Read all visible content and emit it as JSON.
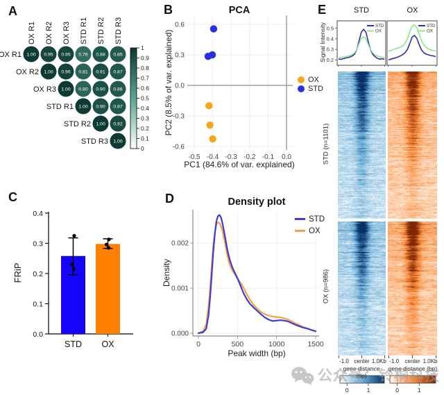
{
  "watermark": {
    "text": "公众号：铃桐科技",
    "icon": "wechat-icon"
  },
  "chart_data": [
    {
      "id": "A",
      "panel_label": "A",
      "type": "heatmap",
      "subtype": "correlation_matrix_circles",
      "labels": [
        "OX R1",
        "OX R2",
        "OX R3",
        "STD R1",
        "STD R2",
        "STD R3"
      ],
      "matrix_upper_triangle": [
        [
          1.0,
          0.95,
          0.95,
          0.76,
          0.88,
          0.85
        ],
        [
          1.0,
          0.96,
          0.81,
          0.91,
          0.87
        ],
        [
          1.0,
          0.8,
          0.9,
          0.86
        ],
        [
          1.0,
          0.9,
          0.87
        ],
        [
          1.0,
          0.92
        ],
        [
          1.0
        ]
      ],
      "colorbar": {
        "min": 0,
        "max": 1,
        "ticks": [
          "1",
          "0.9",
          "0.8",
          "0.7",
          "0.6",
          "0.5",
          "0.4",
          "0.3",
          "0.2",
          "0.1",
          "0"
        ],
        "color_max": "#0d3a33",
        "color_mid": "#58a593",
        "color_min": "#ffffff"
      }
    },
    {
      "id": "B",
      "panel_label": "B",
      "type": "scatter",
      "title": "PCA",
      "xlabel": "PC1 (84.6% of var. explained)",
      "ylabel": "PC2 (8.5% of var. explained)",
      "x_ticks": [
        "-0.5",
        "-0.4",
        "-0.3",
        "-0.2",
        "-0.1",
        "0.0"
      ],
      "y_ticks": [
        "0.6",
        "0.3",
        "0.0",
        "-0.3",
        "-0.6"
      ],
      "xlim": [
        -0.55,
        0.05
      ],
      "ylim": [
        -0.65,
        0.65
      ],
      "grid": true,
      "series": [
        {
          "name": "OX",
          "color": "#f6a51d",
          "points": [
            [
              -0.42,
              -0.2
            ],
            [
              -0.415,
              -0.39
            ],
            [
              -0.4,
              -0.525
            ]
          ]
        },
        {
          "name": "STD",
          "color": "#2b2fe3",
          "points": [
            [
              -0.395,
              0.555
            ],
            [
              -0.425,
              0.285
            ],
            [
              -0.402,
              0.3
            ]
          ]
        }
      ],
      "legend": {
        "position": "right",
        "entries": [
          "OX",
          "STD"
        ]
      }
    },
    {
      "id": "C",
      "panel_label": "C",
      "type": "bar",
      "ylabel": "FRiP",
      "categories": [
        "STD",
        "OX"
      ],
      "values": [
        0.258,
        0.298
      ],
      "bar_colors": [
        "#1404fa",
        "#ff8000"
      ],
      "error_bars": [
        {
          "low": 0.196,
          "high": 0.318
        },
        {
          "low": 0.283,
          "high": 0.315
        }
      ],
      "points": [
        [
          0.325,
          0.23,
          0.215
        ],
        [
          0.313,
          0.296,
          0.285
        ]
      ],
      "y_ticks": [
        "0.4",
        "0.3",
        "0.2",
        "0.1",
        "0.0"
      ],
      "ylim": [
        0,
        0.4
      ]
    },
    {
      "id": "D",
      "panel_label": "D",
      "type": "line",
      "title": "Density plot",
      "xlabel": "Peak width (bp)",
      "ylabel": "Density",
      "x_ticks": [
        "0",
        "500",
        "1000",
        "1500"
      ],
      "y_ticks": [
        "0.002",
        "0.001",
        "0.000"
      ],
      "xlim": [
        0,
        1500
      ],
      "ylim": [
        0,
        0.00272
      ],
      "series": [
        {
          "name": "STD",
          "color": "#3c3cdc",
          "x": [
            0,
            60,
            100,
            130,
            150,
            170,
            190,
            210,
            230,
            250,
            270,
            290,
            310,
            340,
            370,
            400,
            430,
            460,
            500,
            540,
            580,
            620,
            660,
            700,
            750,
            800,
            850,
            900,
            950,
            1000,
            1050,
            1100,
            1150,
            1200,
            1250,
            1300,
            1350,
            1400,
            1450,
            1500
          ],
          "y": [
            0,
            2e-05,
            0.0001,
            0.0004,
            0.0008,
            0.0013,
            0.0018,
            0.0022,
            0.00248,
            0.0026,
            0.00262,
            0.00256,
            0.00242,
            0.00215,
            0.00185,
            0.00163,
            0.00148,
            0.00136,
            0.00122,
            0.00105,
            0.00088,
            0.00075,
            0.00065,
            0.00058,
            0.0005,
            0.00042,
            0.00035,
            0.0003,
            0.00027,
            0.00028,
            0.00029,
            0.00028,
            0.00026,
            0.00022,
            0.00018,
            0.00015,
            0.00012,
            0.0001,
            7e-05,
            4e-05
          ]
        },
        {
          "name": "OX",
          "color": "#f9a03f",
          "x": [
            0,
            60,
            100,
            130,
            150,
            170,
            190,
            210,
            230,
            250,
            270,
            290,
            310,
            340,
            370,
            400,
            430,
            460,
            500,
            540,
            580,
            620,
            660,
            700,
            750,
            800,
            850,
            900,
            950,
            1000,
            1050,
            1100,
            1150,
            1200,
            1250,
            1300,
            1350,
            1400,
            1450,
            1500
          ],
          "y": [
            0,
            5e-05,
            0.0002,
            0.0006,
            0.001,
            0.0015,
            0.00195,
            0.00225,
            0.00241,
            0.00246,
            0.00244,
            0.00237,
            0.00225,
            0.002,
            0.00172,
            0.00152,
            0.0014,
            0.00132,
            0.00121,
            0.00112,
            0.001,
            0.00086,
            0.00074,
            0.00064,
            0.00055,
            0.00047,
            0.00042,
            0.00039,
            0.00037,
            0.00036,
            0.00035,
            0.00033,
            0.0003,
            0.00026,
            0.00021,
            0.00017,
            0.00013,
            0.0001,
            7e-05,
            5e-05
          ]
        }
      ]
    },
    {
      "id": "E",
      "panel_label": "E",
      "type": "heatmap",
      "subtype": "signal_profile_heatmap",
      "columns": [
        {
          "title": "STD",
          "colormap": "blues"
        },
        {
          "title": "OX",
          "colormap": "oranges"
        }
      ],
      "profile": {
        "ylabel": "Signal Intensity",
        "y_ticks": [
          "0.5",
          "0.4",
          "0.3",
          "0.2"
        ],
        "ylim": [
          0.15,
          0.57
        ],
        "legend": [
          "STD",
          "OX"
        ],
        "lines": {
          "STD": {
            "color": "#2e2ea8"
          },
          "OX": {
            "color": "#8ce68c"
          }
        },
        "curves": {
          "left": {
            "STD": [
              0.21,
              0.205,
              0.212,
              0.218,
              0.222,
              0.228,
              0.238,
              0.255,
              0.3,
              0.385,
              0.465,
              0.49,
              0.462,
              0.37,
              0.292,
              0.252,
              0.23,
              0.215,
              0.208,
              0.212,
              0.208
            ],
            "OX": [
              0.218,
              0.222,
              0.226,
              0.23,
              0.236,
              0.242,
              0.252,
              0.268,
              0.3,
              0.358,
              0.405,
              0.42,
              0.398,
              0.345,
              0.296,
              0.266,
              0.248,
              0.238,
              0.23,
              0.226,
              0.222
            ]
          },
          "right": {
            "STD": [
              0.2,
              0.208,
              0.214,
              0.22,
              0.228,
              0.238,
              0.25,
              0.268,
              0.298,
              0.355,
              0.415,
              0.432,
              0.405,
              0.345,
              0.295,
              0.268,
              0.255,
              0.248,
              0.242,
              0.238,
              0.232
            ],
            "OX": [
              0.282,
              0.29,
              0.298,
              0.306,
              0.312,
              0.32,
              0.332,
              0.358,
              0.4,
              0.468,
              0.52,
              0.532,
              0.505,
              0.442,
              0.382,
              0.342,
              0.318,
              0.302,
              0.294,
              0.29,
              0.284
            ]
          }
        }
      },
      "row_groups": [
        {
          "label": "STD (n=1101)",
          "n": 1101
        },
        {
          "label": "OX (n=986)",
          "n": 986
        }
      ],
      "x_axis": {
        "tick_labels": [
          "-1.0",
          "center",
          "1.0Kb"
        ],
        "label": "gene distance (bp)"
      },
      "colorbars": [
        {
          "ticks": [
            "0",
            "1"
          ],
          "from": "#f7fbff",
          "mid": "#6baed6",
          "to": "#08306b"
        },
        {
          "ticks": [
            "0",
            "1"
          ],
          "from": "#fff5eb",
          "mid": "#fd8d3c",
          "to": "#7f2704"
        }
      ]
    }
  ]
}
